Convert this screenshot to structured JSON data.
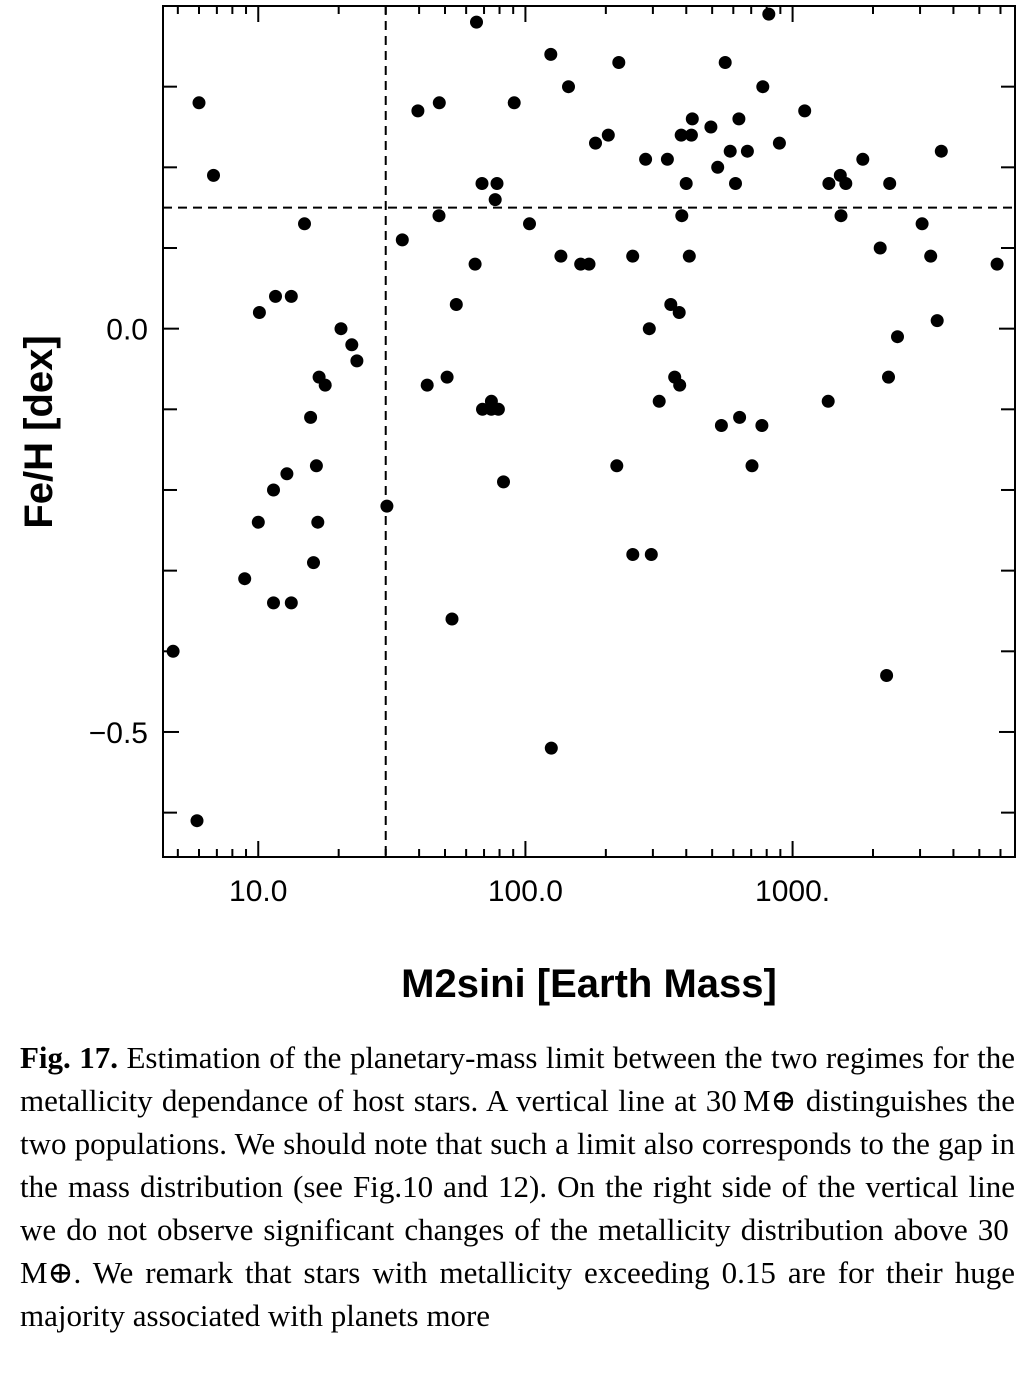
{
  "chart_data": {
    "type": "scatter",
    "xlabel": "M2sini   [Earth Mass]",
    "ylabel": "Fe/H   [dex]",
    "xscale": "log",
    "xlim": [
      4.4,
      6800
    ],
    "ylim": [
      -0.655,
      0.4
    ],
    "x_tick_labels": [
      {
        "value": 10,
        "label": "10.0"
      },
      {
        "value": 100,
        "label": "100.0"
      },
      {
        "value": 1000,
        "label": "1000."
      }
    ],
    "y_tick_labels": [
      {
        "value": 0.0,
        "label": "0.0"
      },
      {
        "value": -0.5,
        "label": "−0.5"
      }
    ],
    "reference_lines": {
      "vertical_x": 30,
      "horizontal_y": 0.15
    },
    "grid": false,
    "points": [
      {
        "x": 4.8,
        "y": -0.4
      },
      {
        "x": 5.9,
        "y": -0.61
      },
      {
        "x": 6.0,
        "y": 0.28
      },
      {
        "x": 6.8,
        "y": 0.19
      },
      {
        "x": 8.9,
        "y": -0.31
      },
      {
        "x": 10.0,
        "y": -0.24
      },
      {
        "x": 10.1,
        "y": 0.02
      },
      {
        "x": 11.4,
        "y": -0.2
      },
      {
        "x": 11.6,
        "y": 0.04
      },
      {
        "x": 11.4,
        "y": -0.34
      },
      {
        "x": 12.8,
        "y": -0.18
      },
      {
        "x": 13.3,
        "y": 0.04
      },
      {
        "x": 13.3,
        "y": -0.34
      },
      {
        "x": 14.9,
        "y": 0.13
      },
      {
        "x": 15.7,
        "y": -0.11
      },
      {
        "x": 16.1,
        "y": -0.29
      },
      {
        "x": 16.5,
        "y": -0.17
      },
      {
        "x": 16.7,
        "y": -0.24
      },
      {
        "x": 16.9,
        "y": -0.06
      },
      {
        "x": 17.8,
        "y": -0.07
      },
      {
        "x": 20.4,
        "y": 0.0
      },
      {
        "x": 22.4,
        "y": -0.02
      },
      {
        "x": 23.4,
        "y": -0.04
      },
      {
        "x": 30.3,
        "y": -0.22
      },
      {
        "x": 34.6,
        "y": 0.11
      },
      {
        "x": 39.6,
        "y": 0.27
      },
      {
        "x": 42.9,
        "y": -0.07
      },
      {
        "x": 47.5,
        "y": 0.14
      },
      {
        "x": 47.6,
        "y": 0.28
      },
      {
        "x": 50.9,
        "y": -0.06
      },
      {
        "x": 53.1,
        "y": -0.36
      },
      {
        "x": 55.1,
        "y": 0.03
      },
      {
        "x": 64.8,
        "y": 0.08
      },
      {
        "x": 65.6,
        "y": 0.38
      },
      {
        "x": 69.1,
        "y": -0.1
      },
      {
        "x": 68.8,
        "y": 0.18
      },
      {
        "x": 74.5,
        "y": -0.1
      },
      {
        "x": 74.6,
        "y": -0.09
      },
      {
        "x": 77.1,
        "y": 0.16
      },
      {
        "x": 78.3,
        "y": 0.18
      },
      {
        "x": 79.2,
        "y": -0.1
      },
      {
        "x": 82.8,
        "y": -0.19
      },
      {
        "x": 90.8,
        "y": 0.28
      },
      {
        "x": 103.6,
        "y": 0.13
      },
      {
        "x": 124.4,
        "y": 0.34
      },
      {
        "x": 125.0,
        "y": -0.52
      },
      {
        "x": 135.8,
        "y": 0.09
      },
      {
        "x": 144.9,
        "y": 0.3
      },
      {
        "x": 161.0,
        "y": 0.08
      },
      {
        "x": 173.0,
        "y": 0.08
      },
      {
        "x": 183.0,
        "y": 0.23
      },
      {
        "x": 204.2,
        "y": 0.24
      },
      {
        "x": 219.8,
        "y": -0.17
      },
      {
        "x": 223.6,
        "y": 0.33
      },
      {
        "x": 252.0,
        "y": 0.09
      },
      {
        "x": 252.3,
        "y": -0.28
      },
      {
        "x": 281.8,
        "y": 0.21
      },
      {
        "x": 290.9,
        "y": 0.0
      },
      {
        "x": 295.9,
        "y": -0.28
      },
      {
        "x": 316.8,
        "y": -0.09
      },
      {
        "x": 340.1,
        "y": 0.21
      },
      {
        "x": 350.0,
        "y": 0.03
      },
      {
        "x": 362.0,
        "y": -0.06
      },
      {
        "x": 376.2,
        "y": 0.02
      },
      {
        "x": 378.0,
        "y": -0.07
      },
      {
        "x": 383.0,
        "y": 0.24
      },
      {
        "x": 385.0,
        "y": 0.14
      },
      {
        "x": 399.9,
        "y": 0.18
      },
      {
        "x": 410.6,
        "y": 0.09
      },
      {
        "x": 418.1,
        "y": 0.24
      },
      {
        "x": 421.3,
        "y": 0.26
      },
      {
        "x": 494.6,
        "y": 0.25
      },
      {
        "x": 524.6,
        "y": 0.2
      },
      {
        "x": 541.3,
        "y": -0.12
      },
      {
        "x": 559.7,
        "y": 0.33
      },
      {
        "x": 583.9,
        "y": 0.22
      },
      {
        "x": 611.3,
        "y": 0.18
      },
      {
        "x": 629.5,
        "y": 0.26
      },
      {
        "x": 633.2,
        "y": -0.11
      },
      {
        "x": 677.6,
        "y": 0.22
      },
      {
        "x": 705.0,
        "y": -0.17
      },
      {
        "x": 767.8,
        "y": -0.12
      },
      {
        "x": 773.3,
        "y": 0.3
      },
      {
        "x": 814.5,
        "y": 0.39
      },
      {
        "x": 892.8,
        "y": 0.23
      },
      {
        "x": 1110.1,
        "y": 0.27
      },
      {
        "x": 1359.2,
        "y": -0.09
      },
      {
        "x": 1368.1,
        "y": 0.18
      },
      {
        "x": 1508.4,
        "y": 0.19
      },
      {
        "x": 1517.4,
        "y": 0.14
      },
      {
        "x": 1582.1,
        "y": 0.18
      },
      {
        "x": 1831.8,
        "y": 0.21
      },
      {
        "x": 2127.7,
        "y": 0.1
      },
      {
        "x": 2248.3,
        "y": -0.43
      },
      {
        "x": 2286.0,
        "y": -0.06
      },
      {
        "x": 2309.5,
        "y": 0.18
      },
      {
        "x": 2470.0,
        "y": -0.01
      },
      {
        "x": 3053.6,
        "y": 0.13
      },
      {
        "x": 3287.2,
        "y": 0.09
      },
      {
        "x": 3478.3,
        "y": 0.01
      },
      {
        "x": 3603.7,
        "y": 0.22
      },
      {
        "x": 5827.6,
        "y": 0.08
      }
    ]
  },
  "caption": {
    "fig_label": "Fig. 17.",
    "text": "Estimation of the planetary-mass limit between the two regimes for the metallicity dependance of host stars. A vertical line at 30 M⊕ distinguishes the two populations. We should note that such a limit also corresponds to the gap in the mass distribution (see Fig.10 and 12). On the right side of the vertical line we do not observe significant changes of the metallicity distribution above 30 M⊕. We remark that stars with metallicity exceeding 0.15 are for their huge majority associated with planets more"
  }
}
